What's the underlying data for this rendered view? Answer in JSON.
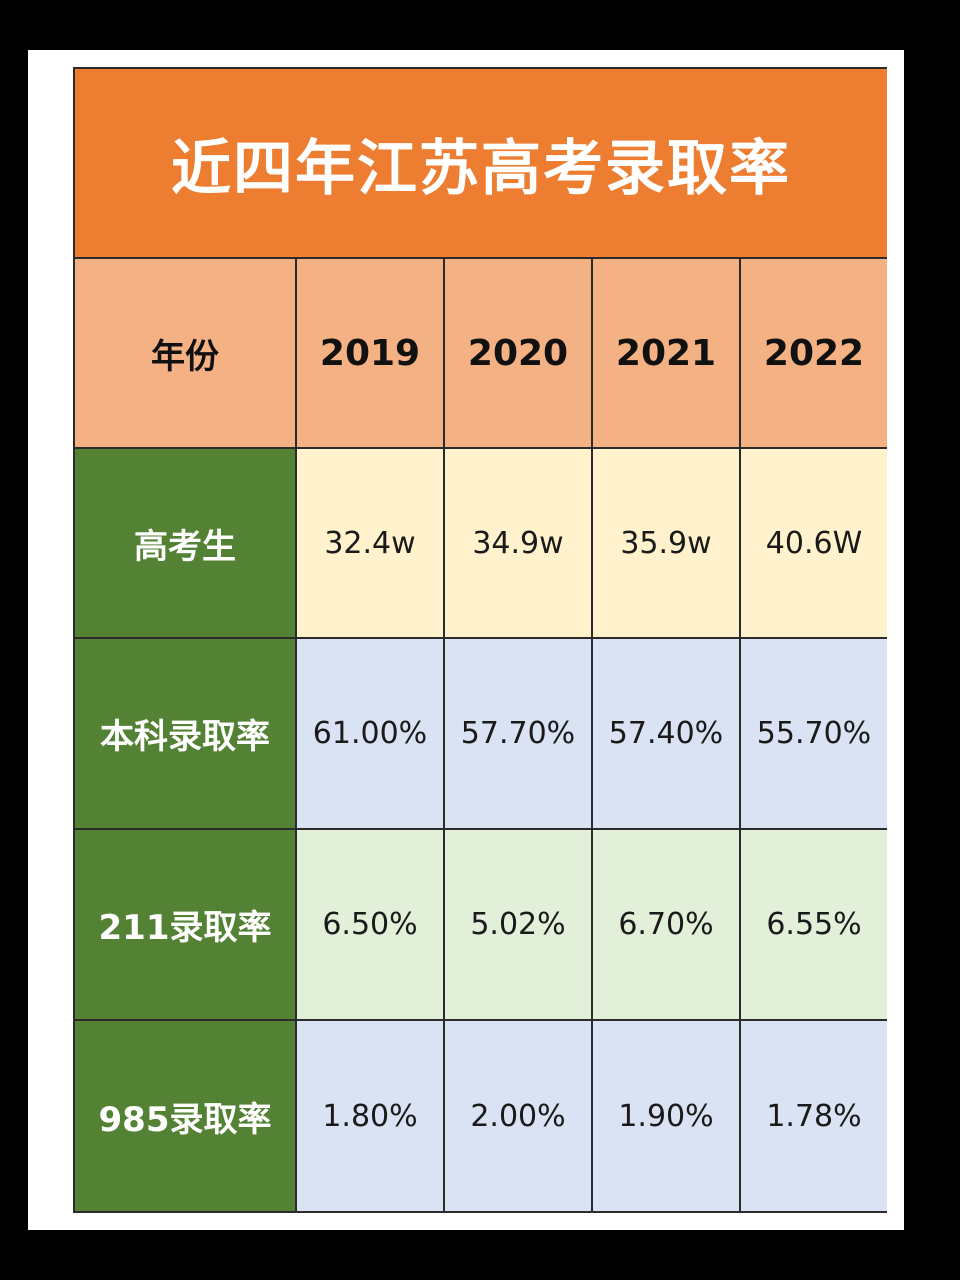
{
  "title": "近四年江苏高考录取率",
  "header": {
    "label": "年份",
    "years": [
      "2019",
      "2020",
      "2021",
      "2022"
    ]
  },
  "rows": [
    {
      "label": "高考生",
      "values": [
        "32.4w",
        "34.9w",
        "35.9w",
        "40.6W"
      ],
      "bg": "#fff2cc"
    },
    {
      "label": "本科录取率",
      "values": [
        "61.00%",
        "57.70%",
        "57.40%",
        "55.70%"
      ],
      "bg": "#dae3f3"
    },
    {
      "label": "211录取率",
      "values": [
        "6.50%",
        "5.02%",
        "6.70%",
        "6.55%"
      ],
      "bg": "#e2f0d9"
    },
    {
      "label": "985录取率",
      "values": [
        "1.80%",
        "2.00%",
        "1.90%",
        "1.78%"
      ],
      "bg": "#dae3f3"
    }
  ],
  "colors": {
    "title_bg": "#ed7d31",
    "header_bg": "#f4b183",
    "row_label_bg": "#548235"
  }
}
